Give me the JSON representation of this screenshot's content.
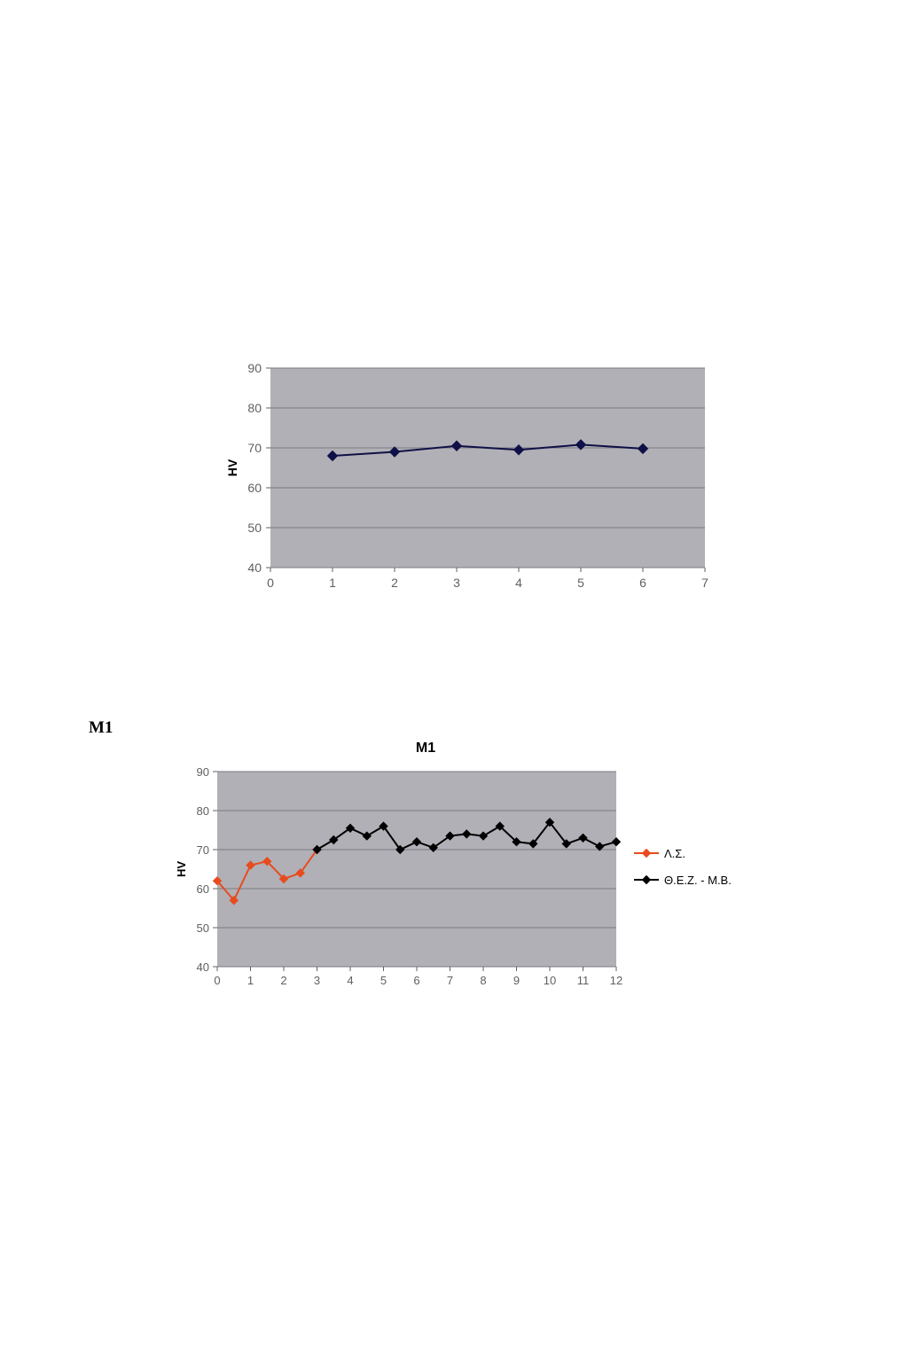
{
  "section_label": "M1",
  "chart1": {
    "type": "line",
    "ylabel": "HV",
    "ylabel_fontsize": 14,
    "ylim": [
      40,
      90
    ],
    "ytick_step": 10,
    "yticks": [
      40,
      50,
      60,
      70,
      80,
      90
    ],
    "xlim": [
      0,
      7
    ],
    "xtick_step": 1,
    "xticks": [
      0,
      1,
      2,
      3,
      4,
      5,
      6,
      7
    ],
    "tick_fontsize": 14,
    "tick_color": "#606060",
    "plot_bg": "#b0b0b6",
    "grid_color": "#7a7a82",
    "line_color": "#101048",
    "marker": "diamond",
    "marker_color": "#101048",
    "marker_size": 7,
    "line_width": 2,
    "x": [
      1,
      2,
      3,
      4,
      5,
      6
    ],
    "y": [
      68,
      69,
      70.5,
      69.5,
      70.8,
      69.8
    ]
  },
  "chart2": {
    "type": "line",
    "title": "M1",
    "title_fontsize": 16,
    "ylabel": "HV",
    "ylabel_fontsize": 13,
    "ylim": [
      40,
      90
    ],
    "ytick_step": 10,
    "yticks": [
      40,
      50,
      60,
      70,
      80,
      90
    ],
    "xlim": [
      0,
      12
    ],
    "xtick_step": 1,
    "xticks": [
      0,
      1,
      2,
      3,
      4,
      5,
      6,
      7,
      8,
      9,
      10,
      11,
      12
    ],
    "tick_fontsize": 13,
    "tick_color": "#606060",
    "plot_bg": "#b0b0b6",
    "grid_color": "#7a7a82",
    "marker": "diamond",
    "marker_size": 6,
    "line_width": 2,
    "series": [
      {
        "label": "Λ.Σ.",
        "color": "#e84b1e",
        "x": [
          0,
          0.5,
          1,
          1.5,
          2,
          2.5,
          3
        ],
        "y": [
          62,
          57,
          66,
          67,
          62.5,
          64,
          70
        ]
      },
      {
        "label": "Θ.Ε.Ζ. - Μ.Β.",
        "color": "#000000",
        "x": [
          3,
          3.5,
          4,
          4.5,
          5,
          5.5,
          6,
          6.5,
          7,
          7.5,
          8,
          8.5,
          9,
          9.5,
          10,
          10.5,
          11,
          11.5,
          12
        ],
        "y": [
          70,
          72.5,
          75.5,
          73.5,
          76,
          70,
          72,
          70.5,
          73.5,
          74,
          73.5,
          76,
          72,
          71.5,
          77,
          71.5,
          73,
          70.8,
          72
        ]
      }
    ],
    "legend_fontsize": 13,
    "legend_text_color": "#000000"
  }
}
